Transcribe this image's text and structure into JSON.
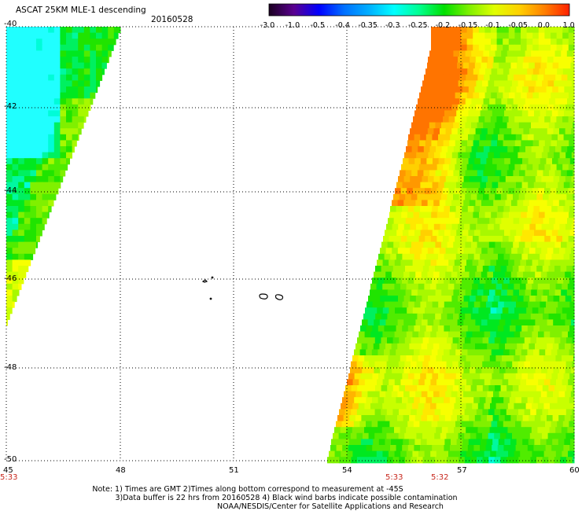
{
  "header": {
    "title": "ASCAT 25KM MLE-1 descending",
    "date": "20160528"
  },
  "colorbar": {
    "labels": [
      "-3.0",
      "-1.0",
      "-0.5",
      "-0.4",
      "-0.35",
      "-0.3",
      "-0.25",
      "-0.2",
      "-0.15",
      "-0.1",
      "-0.05",
      "0.0",
      "1.0"
    ],
    "colors": [
      "#1a0020",
      "#5a0090",
      "#0000ff",
      "#0070ff",
      "#00b0ff",
      "#00ffff",
      "#00ff90",
      "#00e000",
      "#80f000",
      "#e0ff00",
      "#ffd000",
      "#ff8000",
      "#ff2000"
    ]
  },
  "map": {
    "lon_labels": [
      "45",
      "48",
      "51",
      "54",
      "57",
      "60"
    ],
    "lat_labels": [
      "-40",
      "-42",
      "-44",
      "-46",
      "-48",
      "-50"
    ],
    "time_labels": [
      "5:33",
      "5:33",
      "5:32"
    ]
  },
  "footer": {
    "line1": "Note: 1) Times are GMT 2)Times along bottom correspond to measurement at -45S",
    "line2": "3)Data buffer is 22 hrs from 20160528 4) Black wind barbs indicate possible contamination",
    "line3": "NOAA/NESDIS/Center for Satellite Applications and Research"
  }
}
